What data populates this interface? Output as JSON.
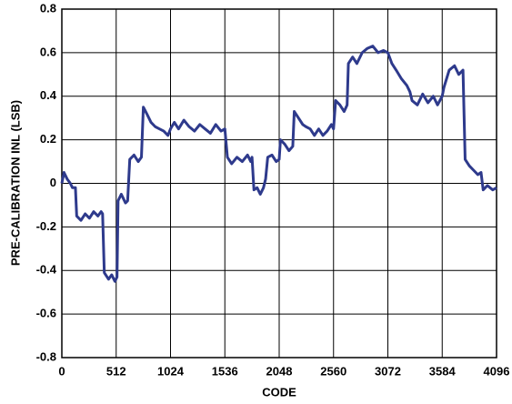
{
  "chart_data": {
    "type": "line",
    "xlabel": "CODE",
    "ylabel": "PRE-CALIBRATION INL (LSB)",
    "xlim": [
      0,
      4096
    ],
    "xticks": [
      0,
      512,
      1024,
      1536,
      2048,
      2560,
      3072,
      3584,
      4096
    ],
    "ylim": [
      -0.8,
      0.8
    ],
    "yticks": [
      0.8,
      0.6,
      0.4,
      0.2,
      0,
      -0.2,
      -0.4,
      -0.6,
      -0.8
    ],
    "grid": true,
    "series": [
      {
        "color": "#2e3a8c",
        "x": [
          0,
          20,
          50,
          80,
          100,
          128,
          140,
          180,
          220,
          260,
          300,
          340,
          370,
          384,
          400,
          440,
          470,
          500,
          520,
          530,
          560,
          600,
          620,
          640,
          680,
          720,
          750,
          768,
          800,
          840,
          880,
          920,
          960,
          1000,
          1024,
          1060,
          1100,
          1150,
          1200,
          1250,
          1300,
          1350,
          1400,
          1450,
          1500,
          1536,
          1560,
          1600,
          1650,
          1700,
          1750,
          1780,
          1792,
          1810,
          1840,
          1870,
          1900,
          1920,
          1940,
          1980,
          2020,
          2048,
          2060,
          2100,
          2140,
          2176,
          2190,
          2230,
          2270,
          2300,
          2340,
          2380,
          2420,
          2460,
          2500,
          2540,
          2560,
          2580,
          2620,
          2660,
          2688,
          2700,
          2740,
          2780,
          2830,
          2880,
          2930,
          2980,
          3030,
          3072,
          3110,
          3150,
          3200,
          3250,
          3280,
          3300,
          3350,
          3400,
          3450,
          3500,
          3540,
          3584,
          3600,
          3650,
          3700,
          3740,
          3780,
          3800,
          3840,
          3880,
          3920,
          3950,
          3970,
          4010,
          4060,
          4096
        ],
        "values": [
          0.0,
          0.05,
          0.02,
          0.0,
          -0.02,
          -0.02,
          -0.15,
          -0.17,
          -0.14,
          -0.16,
          -0.13,
          -0.15,
          -0.13,
          -0.14,
          -0.41,
          -0.44,
          -0.42,
          -0.45,
          -0.43,
          -0.08,
          -0.05,
          -0.09,
          -0.08,
          0.11,
          0.13,
          0.1,
          0.12,
          0.35,
          0.32,
          0.28,
          0.26,
          0.25,
          0.24,
          0.22,
          0.25,
          0.28,
          0.25,
          0.29,
          0.26,
          0.24,
          0.27,
          0.25,
          0.23,
          0.27,
          0.24,
          0.25,
          0.12,
          0.09,
          0.12,
          0.1,
          0.13,
          0.1,
          0.12,
          -0.03,
          -0.02,
          -0.05,
          -0.02,
          0.02,
          0.12,
          0.13,
          0.1,
          0.11,
          0.2,
          0.18,
          0.15,
          0.17,
          0.33,
          0.3,
          0.27,
          0.26,
          0.25,
          0.22,
          0.25,
          0.22,
          0.24,
          0.27,
          0.25,
          0.38,
          0.36,
          0.33,
          0.36,
          0.55,
          0.58,
          0.55,
          0.6,
          0.62,
          0.63,
          0.6,
          0.61,
          0.6,
          0.55,
          0.52,
          0.48,
          0.45,
          0.42,
          0.38,
          0.36,
          0.41,
          0.37,
          0.4,
          0.36,
          0.4,
          0.44,
          0.52,
          0.54,
          0.5,
          0.52,
          0.11,
          0.08,
          0.06,
          0.04,
          0.05,
          -0.03,
          -0.01,
          -0.03,
          -0.02
        ]
      }
    ]
  }
}
